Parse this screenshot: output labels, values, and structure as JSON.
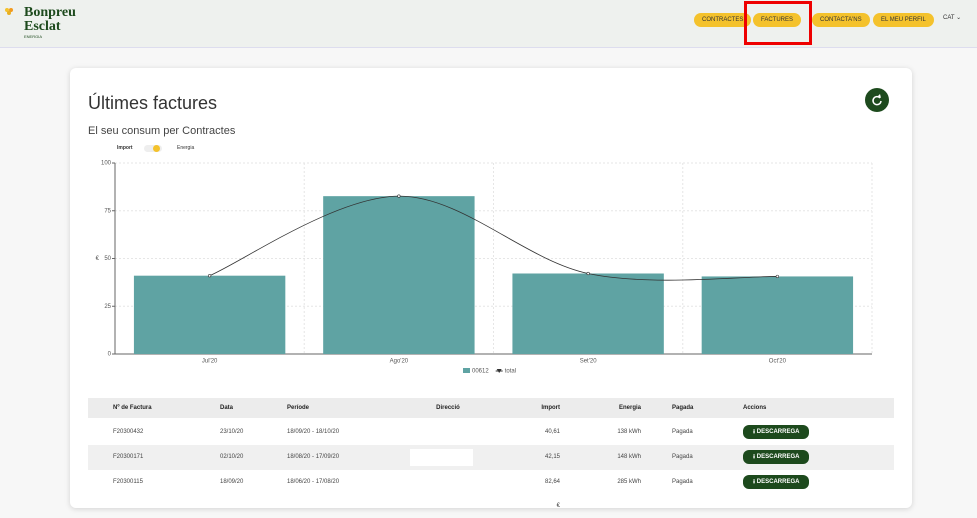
{
  "header": {
    "brand": "Bonpreu",
    "brand2": "Esclat",
    "brand_sub": "ENERGIA",
    "nav": [
      "CONTRACTES",
      "FACTURES",
      "CONTACTA'NS",
      "EL MEU PERFIL"
    ],
    "lang": "CAT"
  },
  "card": {
    "title": "Últimes factures",
    "subtitle": "El seu consum per Contractes",
    "toggle_left": "Import",
    "toggle_right": "Energia"
  },
  "chart_data": {
    "type": "bar",
    "ylabel": "€",
    "categories": [
      "Jul'20",
      "Ago'20",
      "Set'20",
      "Oct'20"
    ],
    "series": [
      {
        "name": "00612",
        "color": "#5fa3a3",
        "values": [
          41,
          82.64,
          42.15,
          40.61
        ]
      },
      {
        "name": "total",
        "type": "line",
        "color": "#333333",
        "values": [
          41,
          82.64,
          42.15,
          40.61
        ]
      }
    ],
    "ylim": [
      0,
      100
    ],
    "yticks": [
      0,
      25,
      50,
      75,
      100
    ],
    "grid": true
  },
  "table": {
    "columns": [
      "Nº de Factura",
      "Data",
      "Període",
      "Direcció",
      "Import",
      "Energia",
      "Pagada",
      "Accions"
    ],
    "action_label": "DESCARREGA",
    "rows": [
      {
        "num": "F20300432",
        "date": "23/10/20",
        "period": "18/09/20 - 18/10/20",
        "import": "40,61 €",
        "energy": "138 kWh",
        "paid": "Pagada"
      },
      {
        "num": "F20300171",
        "date": "02/10/20",
        "period": "18/08/20 - 17/09/20",
        "import": "42,15 €",
        "energy": "148 kWh",
        "paid": "Pagada"
      },
      {
        "num": "F20300115",
        "date": "18/09/20",
        "period": "18/06/20 - 17/08/20",
        "import": "82,64 €",
        "energy": "285 kWh",
        "paid": "Pagada"
      }
    ]
  }
}
